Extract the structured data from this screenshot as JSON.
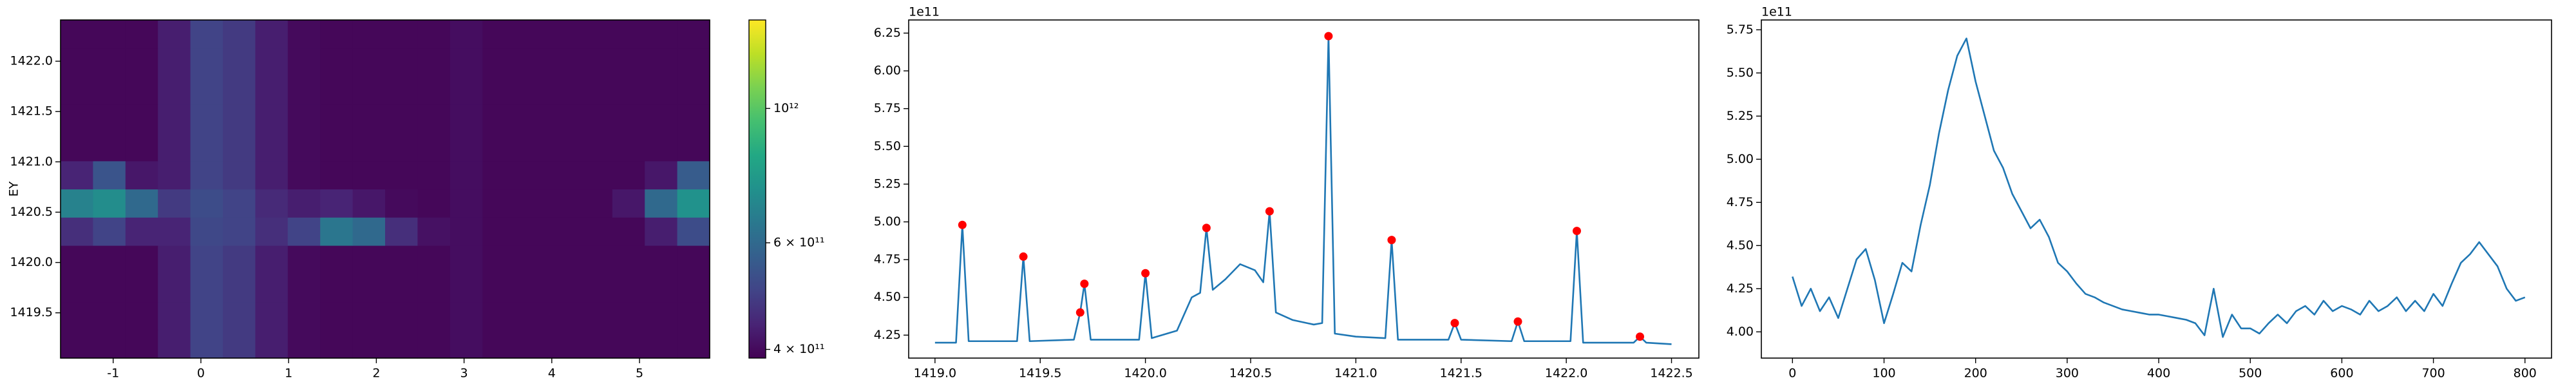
{
  "chart_data": [
    {
      "type": "heatmap",
      "ylabel": "EY",
      "colormap": "viridis",
      "log_color": true,
      "xlim": [
        -1.6,
        5.8
      ],
      "xticks": [
        -1,
        0,
        1,
        2,
        3,
        4,
        5
      ],
      "ylim": [
        1419.05,
        1422.41
      ],
      "yticks": [
        1419.5,
        {
          "value": 1420,
          "label": "1420.0"
        },
        1420.5,
        {
          "value": 1421,
          "label": "1421.0"
        },
        1421.5,
        {
          "value": 1422,
          "label": "1422.0"
        }
      ],
      "x_edges": [
        -1.6,
        -1.23,
        -0.86,
        -0.49,
        -0.12,
        0.25,
        0.62,
        0.99,
        1.36,
        1.73,
        2.1,
        2.47,
        2.84,
        3.21,
        3.58,
        3.95,
        4.32,
        4.69,
        5.06,
        5.43,
        5.8
      ],
      "y_edges": [
        1419.05,
        1419.33,
        1419.61,
        1419.89,
        1420.17,
        1420.45,
        1420.73,
        1421.01,
        1421.29,
        1421.57,
        1421.85,
        1422.13,
        1422.41
      ],
      "z": [
        [
          395000000000.0,
          395000000000.0,
          395000000000.0,
          430000000000.0,
          500000000000.0,
          480000000000.0,
          430000000000.0,
          400000000000.0,
          395000000000.0,
          395000000000.0,
          395000000000.0,
          395000000000.0,
          405000000000.0,
          395000000000.0,
          395000000000.0,
          395000000000.0,
          395000000000.0,
          395000000000.0,
          395000000000.0,
          395000000000.0
        ],
        [
          395000000000.0,
          395000000000.0,
          395000000000.0,
          430000000000.0,
          500000000000.0,
          480000000000.0,
          430000000000.0,
          400000000000.0,
          395000000000.0,
          395000000000.0,
          395000000000.0,
          395000000000.0,
          405000000000.0,
          395000000000.0,
          395000000000.0,
          395000000000.0,
          395000000000.0,
          395000000000.0,
          395000000000.0,
          395000000000.0
        ],
        [
          395000000000.0,
          395000000000.0,
          395000000000.0,
          430000000000.0,
          500000000000.0,
          480000000000.0,
          430000000000.0,
          400000000000.0,
          395000000000.0,
          395000000000.0,
          395000000000.0,
          395000000000.0,
          405000000000.0,
          395000000000.0,
          395000000000.0,
          395000000000.0,
          395000000000.0,
          395000000000.0,
          395000000000.0,
          395000000000.0
        ],
        [
          395000000000.0,
          395000000000.0,
          395000000000.0,
          430000000000.0,
          500000000000.0,
          480000000000.0,
          430000000000.0,
          400000000000.0,
          395000000000.0,
          395000000000.0,
          395000000000.0,
          395000000000.0,
          405000000000.0,
          395000000000.0,
          395000000000.0,
          395000000000.0,
          395000000000.0,
          395000000000.0,
          395000000000.0,
          395000000000.0
        ],
        [
          460000000000.0,
          500000000000.0,
          440000000000.0,
          440000000000.0,
          510000000000.0,
          500000000000.0,
          460000000000.0,
          500000000000.0,
          640000000000.0,
          600000000000.0,
          460000000000.0,
          410000000000.0,
          405000000000.0,
          395000000000.0,
          395000000000.0,
          395000000000.0,
          395000000000.0,
          395000000000.0,
          430000000000.0,
          520000000000.0
        ],
        [
          680000000000.0,
          720000000000.0,
          600000000000.0,
          480000000000.0,
          520000000000.0,
          500000000000.0,
          450000000000.0,
          430000000000.0,
          440000000000.0,
          420000000000.0,
          400000000000.0,
          395000000000.0,
          405000000000.0,
          395000000000.0,
          395000000000.0,
          395000000000.0,
          395000000000.0,
          420000000000.0,
          600000000000.0,
          740000000000.0
        ],
        [
          440000000000.0,
          540000000000.0,
          420000000000.0,
          430000000000.0,
          500000000000.0,
          480000000000.0,
          430000000000.0,
          400000000000.0,
          395000000000.0,
          395000000000.0,
          395000000000.0,
          395000000000.0,
          405000000000.0,
          395000000000.0,
          395000000000.0,
          395000000000.0,
          395000000000.0,
          395000000000.0,
          420000000000.0,
          560000000000.0
        ],
        [
          395000000000.0,
          395000000000.0,
          395000000000.0,
          430000000000.0,
          500000000000.0,
          480000000000.0,
          430000000000.0,
          400000000000.0,
          395000000000.0,
          395000000000.0,
          395000000000.0,
          395000000000.0,
          405000000000.0,
          395000000000.0,
          395000000000.0,
          395000000000.0,
          395000000000.0,
          395000000000.0,
          395000000000.0,
          395000000000.0
        ],
        [
          395000000000.0,
          395000000000.0,
          395000000000.0,
          430000000000.0,
          500000000000.0,
          480000000000.0,
          430000000000.0,
          400000000000.0,
          395000000000.0,
          395000000000.0,
          395000000000.0,
          395000000000.0,
          405000000000.0,
          395000000000.0,
          395000000000.0,
          395000000000.0,
          395000000000.0,
          395000000000.0,
          395000000000.0,
          395000000000.0
        ],
        [
          395000000000.0,
          395000000000.0,
          395000000000.0,
          430000000000.0,
          500000000000.0,
          480000000000.0,
          430000000000.0,
          400000000000.0,
          395000000000.0,
          395000000000.0,
          395000000000.0,
          395000000000.0,
          405000000000.0,
          395000000000.0,
          395000000000.0,
          395000000000.0,
          395000000000.0,
          395000000000.0,
          395000000000.0,
          395000000000.0
        ],
        [
          395000000000.0,
          395000000000.0,
          395000000000.0,
          430000000000.0,
          500000000000.0,
          480000000000.0,
          430000000000.0,
          400000000000.0,
          395000000000.0,
          395000000000.0,
          395000000000.0,
          395000000000.0,
          405000000000.0,
          395000000000.0,
          395000000000.0,
          395000000000.0,
          395000000000.0,
          395000000000.0,
          395000000000.0,
          395000000000.0
        ],
        [
          395000000000.0,
          395000000000.0,
          395000000000.0,
          430000000000.0,
          500000000000.0,
          480000000000.0,
          430000000000.0,
          400000000000.0,
          395000000000.0,
          395000000000.0,
          395000000000.0,
          395000000000.0,
          405000000000.0,
          395000000000.0,
          395000000000.0,
          395000000000.0,
          395000000000.0,
          395000000000.0,
          395000000000.0,
          395000000000.0
        ]
      ],
      "colorbar": {
        "lim": [
          387000000000.0,
          1400000000000.0
        ],
        "ticks": [
          {
            "value": 400000000000.0,
            "label": "4 × 10¹¹"
          },
          {
            "value": 600000000000.0,
            "label": "6 × 10¹¹"
          },
          {
            "value": 1000000000000.0,
            "label": "10¹²"
          }
        ]
      }
    },
    {
      "type": "line",
      "y_offset_label": "1e11",
      "xlim": [
        1418.875,
        1422.63
      ],
      "xticks": [
        {
          "value": 1419,
          "label": "1419.0"
        },
        1419.5,
        {
          "value": 1420,
          "label": "1420.0"
        },
        1420.5,
        {
          "value": 1421,
          "label": "1421.0"
        },
        1421.5,
        {
          "value": 1422,
          "label": "1422.0"
        },
        1422.5
      ],
      "ylim": [
        4.098,
        6.337
      ],
      "yticks": [
        4.25,
        {
          "value": 4.5,
          "label": "4.50"
        },
        4.75,
        {
          "value": 5,
          "label": "5.00"
        },
        5.25,
        {
          "value": 5.5,
          "label": "5.50"
        },
        5.75,
        {
          "value": 6,
          "label": "6.00"
        },
        6.25
      ],
      "series": [
        {
          "type": "line",
          "color": "#1f77b4",
          "x": [
            1419.0,
            1419.1,
            1419.13,
            1419.16,
            1419.39,
            1419.42,
            1419.45,
            1419.66,
            1419.69,
            1419.71,
            1419.74,
            1419.97,
            1420.0,
            1420.03,
            1420.15,
            1420.22,
            1420.26,
            1420.29,
            1420.32,
            1420.38,
            1420.45,
            1420.52,
            1420.56,
            1420.59,
            1420.62,
            1420.7,
            1420.8,
            1420.84,
            1420.87,
            1420.9,
            1421.0,
            1421.14,
            1421.17,
            1421.2,
            1421.44,
            1421.47,
            1421.5,
            1421.74,
            1421.77,
            1421.8,
            1422.02,
            1422.05,
            1422.08,
            1422.32,
            1422.35,
            1422.38,
            1422.5
          ],
          "values": [
            4.2,
            4.2,
            4.98,
            4.21,
            4.21,
            4.77,
            4.21,
            4.22,
            4.4,
            4.59,
            4.22,
            4.22,
            4.66,
            4.23,
            4.28,
            4.5,
            4.53,
            4.96,
            4.55,
            4.62,
            4.72,
            4.68,
            4.6,
            5.07,
            4.4,
            4.35,
            4.32,
            4.33,
            6.23,
            4.26,
            4.24,
            4.23,
            4.88,
            4.22,
            4.22,
            4.33,
            4.22,
            4.21,
            4.34,
            4.21,
            4.21,
            4.94,
            4.2,
            4.2,
            4.24,
            4.2,
            4.19
          ]
        },
        {
          "type": "scatter",
          "color": "#ff0000",
          "x": [
            1419.13,
            1419.42,
            1419.69,
            1419.71,
            1420.0,
            1420.29,
            1420.59,
            1420.87,
            1421.17,
            1421.47,
            1421.77,
            1422.05,
            1422.35
          ],
          "values": [
            4.98,
            4.77,
            4.4,
            4.59,
            4.66,
            4.96,
            5.07,
            6.23,
            4.88,
            4.33,
            4.34,
            4.94,
            4.24
          ]
        }
      ]
    },
    {
      "type": "line",
      "y_offset_label": "1e11",
      "xlim": [
        -34,
        829
      ],
      "xticks": [
        0,
        100,
        200,
        300,
        400,
        500,
        600,
        700,
        800
      ],
      "ylim": [
        3.848,
        5.807
      ],
      "yticks": [
        {
          "value": 4,
          "label": "4.00"
        },
        4.25,
        {
          "value": 4.5,
          "label": "4.50"
        },
        4.75,
        {
          "value": 5,
          "label": "5.00"
        },
        5.25,
        {
          "value": 5.5,
          "label": "5.50"
        },
        5.75
      ],
      "series": [
        {
          "type": "line",
          "color": "#1f77b4",
          "x": [
            0,
            10,
            20,
            30,
            40,
            50,
            60,
            70,
            80,
            90,
            100,
            110,
            120,
            130,
            140,
            150,
            160,
            170,
            180,
            190,
            200,
            210,
            220,
            230,
            240,
            250,
            260,
            270,
            280,
            290,
            300,
            310,
            320,
            330,
            340,
            350,
            360,
            370,
            380,
            390,
            400,
            410,
            420,
            430,
            440,
            450,
            460,
            470,
            480,
            490,
            500,
            510,
            520,
            530,
            540,
            550,
            560,
            570,
            580,
            590,
            600,
            610,
            620,
            630,
            640,
            650,
            660,
            670,
            680,
            690,
            700,
            710,
            720,
            730,
            740,
            750,
            760,
            770,
            780,
            790,
            800
          ],
          "values": [
            4.32,
            4.15,
            4.25,
            4.12,
            4.2,
            4.08,
            4.25,
            4.42,
            4.48,
            4.3,
            4.05,
            4.22,
            4.4,
            4.35,
            4.62,
            4.85,
            5.15,
            5.4,
            5.6,
            5.7,
            5.45,
            5.25,
            5.05,
            4.95,
            4.8,
            4.7,
            4.6,
            4.65,
            4.55,
            4.4,
            4.35,
            4.28,
            4.22,
            4.2,
            4.17,
            4.15,
            4.13,
            4.12,
            4.11,
            4.1,
            4.1,
            4.09,
            4.08,
            4.07,
            4.05,
            3.98,
            4.25,
            3.97,
            4.1,
            4.02,
            4.02,
            3.99,
            4.05,
            4.1,
            4.05,
            4.12,
            4.15,
            4.1,
            4.18,
            4.12,
            4.15,
            4.13,
            4.1,
            4.18,
            4.12,
            4.15,
            4.2,
            4.12,
            4.18,
            4.12,
            4.22,
            4.15,
            4.28,
            4.4,
            4.45,
            4.52,
            4.45,
            4.38,
            4.25,
            4.18,
            4.2
          ]
        }
      ]
    }
  ]
}
